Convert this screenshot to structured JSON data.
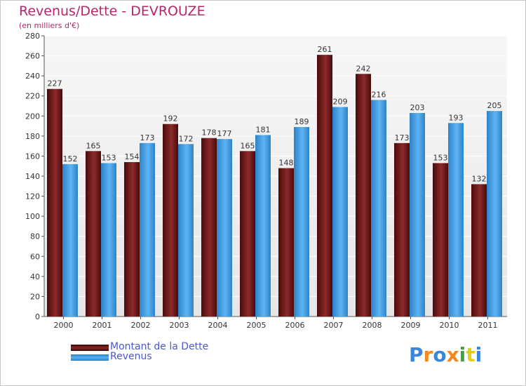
{
  "title": "Revenus/Dette - DEVROUZE",
  "subtitle": "(en milliers d'€)",
  "logo": {
    "text": "Proxiti"
  },
  "colors": {
    "dette": "#7a1b1b",
    "revenus": "#4aa3e6",
    "text": "#b5256c",
    "legend_text": "#4b57d1",
    "plot_bg": "#f0f0f0"
  },
  "chart_data": {
    "type": "bar",
    "title": "Revenus/Dette - DEVROUZE",
    "subtitle": "(en milliers d'€)",
    "xlabel": "",
    "ylabel": "",
    "ylim": [
      0,
      280
    ],
    "ytick_step": 20,
    "grid": true,
    "legend_placement": "bottom-left",
    "categories": [
      "2000",
      "2001",
      "2002",
      "2003",
      "2004",
      "2005",
      "2006",
      "2007",
      "2008",
      "2009",
      "2010",
      "2011"
    ],
    "series": [
      {
        "name": "Montant de la Dette",
        "values": [
          227,
          165,
          154,
          192,
          178,
          165,
          148,
          261,
          242,
          173,
          153,
          132
        ]
      },
      {
        "name": "Revenus",
        "values": [
          152,
          153,
          173,
          172,
          177,
          181,
          189,
          209,
          216,
          203,
          193,
          205
        ]
      }
    ]
  }
}
